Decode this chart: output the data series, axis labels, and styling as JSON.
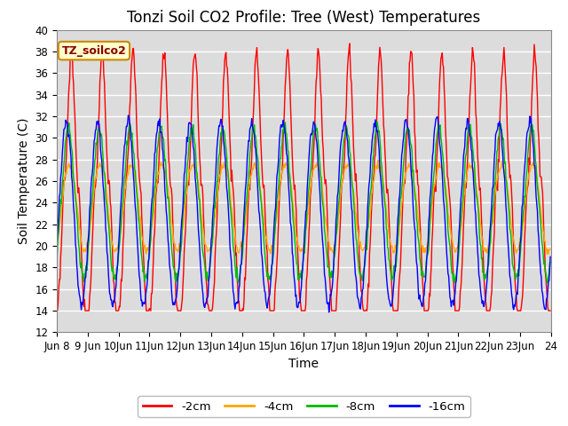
{
  "title": "Tonzi Soil CO2 Profile: Tree (West) Temperatures",
  "ylabel": "Soil Temperature (C)",
  "xlabel": "Time",
  "ylim": [
    12,
    40
  ],
  "yticks": [
    12,
    14,
    16,
    18,
    20,
    22,
    24,
    26,
    28,
    30,
    32,
    34,
    36,
    38,
    40
  ],
  "xtick_labels": [
    "Jun 8",
    "9 Jun",
    "10Jun",
    "11Jun",
    "12Jun",
    "13Jun",
    "14Jun",
    "15Jun",
    "16Jun",
    "17Jun",
    "18Jun",
    "19Jun",
    "20Jun",
    "21Jun",
    "22Jun",
    "23Jun",
    "24"
  ],
  "legend_title": "TZ_soilco2",
  "line_colors": [
    "#ff0000",
    "#ffa500",
    "#00bb00",
    "#0000ff"
  ],
  "line_labels": [
    "-2cm",
    "-4cm",
    "-8cm",
    "-16cm"
  ],
  "plot_bg_color": "#dcdcdc",
  "grid_color": "#ffffff",
  "title_fontsize": 12,
  "axis_fontsize": 10,
  "tick_fontsize": 8.5
}
